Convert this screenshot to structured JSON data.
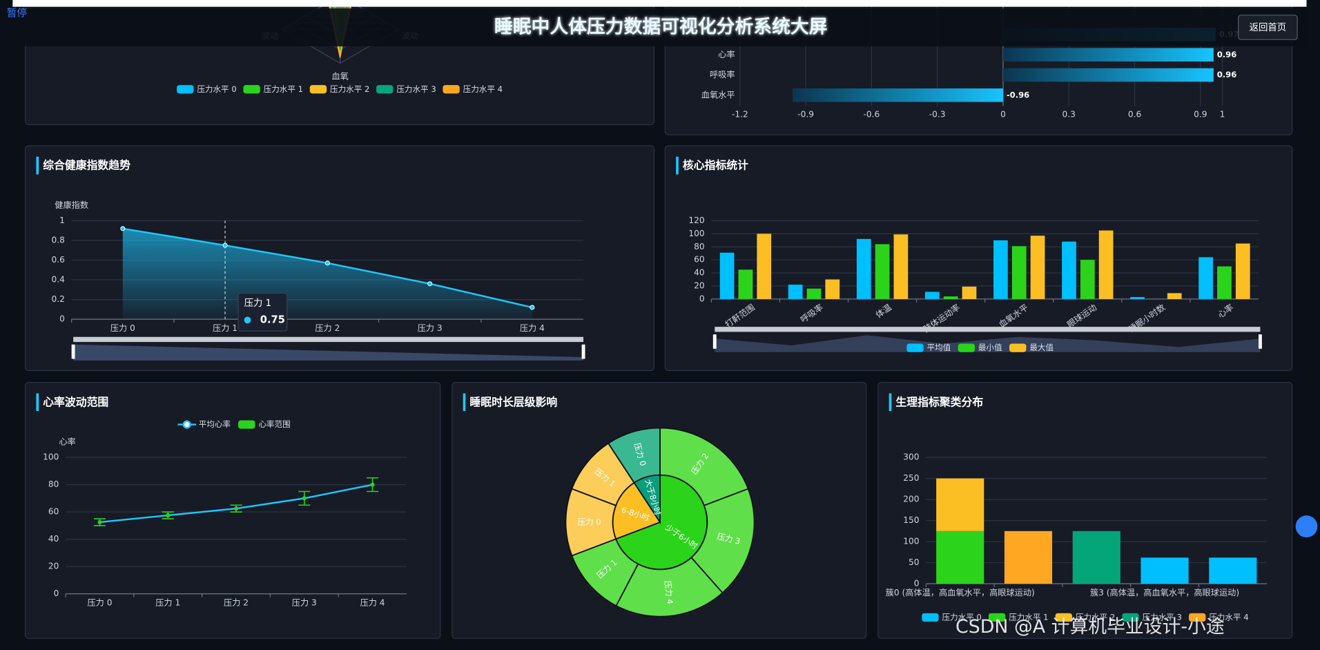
{
  "header": {
    "pause": "暂停",
    "title": "睡眠中人体压力数据可视化分析系统大屏",
    "back_button": "返回首页"
  },
  "watermark": "CSDN @A 计算机毕业设计-小途",
  "chart_data": [
    {
      "type": "radar",
      "indicators": [
        "波动",
        "血氧",
        "波动"
      ],
      "rlim": [
        0,
        1
      ],
      "series": [
        {
          "name": "压力水平 0",
          "color": "#00bfff",
          "values": [
            0.15,
            0.85,
            0.12
          ]
        },
        {
          "name": "压力水平 1",
          "color": "#2bd41a",
          "values": [
            0.1,
            0.9,
            0.1
          ]
        },
        {
          "name": "压力水平 2",
          "color": "#fbbf24",
          "values": [
            0.2,
            0.88,
            0.18
          ]
        },
        {
          "name": "压力水平 3",
          "color": "#05a57a",
          "values": [
            0.12,
            0.8,
            0.15
          ]
        },
        {
          "name": "压力水平 4",
          "color": "#ffa722",
          "values": [
            0.18,
            0.92,
            0.2
          ]
        }
      ]
    },
    {
      "type": "hbar",
      "categories": [
        null,
        "心率",
        "呼吸率",
        "血氧水平"
      ],
      "values": [
        0.97,
        0.96,
        0.96,
        -0.96
      ],
      "xlim": [
        -1.2,
        1
      ],
      "xticks": [
        -1.2,
        -0.9,
        -0.6,
        -0.3,
        0,
        0.3,
        0.6,
        0.9,
        1
      ],
      "color": "#17c4ff",
      "grid": true
    },
    {
      "type": "area",
      "title": "综合健康指数趋势",
      "y_axis_label": "健康指数",
      "categories": [
        "压力 0",
        "压力 1",
        "压力 2",
        "压力 3",
        "压力 4"
      ],
      "values": [
        0.92,
        0.75,
        0.57,
        0.36,
        0.12
      ],
      "ylim": [
        0,
        1
      ],
      "yticks": [
        0,
        0.2,
        0.4,
        0.6,
        0.8,
        1
      ],
      "color": "#1ec8ff",
      "grid": true
    },
    {
      "type": "bar",
      "title": "核心指标统计",
      "categories": [
        "打鼾范围",
        "呼吸率",
        "体温",
        "肢体运动率",
        "血氧水平",
        "眼球运动",
        "睡眠小时数",
        "心率"
      ],
      "series": [
        {
          "name": "平均值",
          "color": "#00bfff",
          "values": [
            71,
            22,
            92,
            11,
            90,
            88,
            3,
            64
          ]
        },
        {
          "name": "最小值",
          "color": "#2bd41a",
          "values": [
            45,
            16,
            84,
            4,
            81,
            60,
            0,
            50
          ]
        },
        {
          "name": "最大值",
          "color": "#fbbf24",
          "values": [
            100,
            30,
            99,
            19,
            97,
            105,
            9,
            85
          ]
        }
      ],
      "ylim": [
        0,
        120
      ],
      "yticks": [
        0,
        20,
        40,
        60,
        80,
        100,
        120
      ],
      "grid": true
    },
    {
      "type": "errorbar",
      "title": "心率波动范围",
      "y_axis_label": "心率",
      "categories": [
        "压力 0",
        "压力 1",
        "压力 2",
        "压力 3",
        "压力 4"
      ],
      "series": [
        {
          "name": "平均心率",
          "color": "#1ec8ff",
          "values": [
            52.5,
            57.5,
            62.5,
            70,
            80
          ]
        },
        {
          "name": "心率范围",
          "color": "#2bd41a",
          "values": [
            2.5,
            2.5,
            2.5,
            5,
            5
          ]
        }
      ],
      "ylim": [
        0,
        100
      ],
      "yticks": [
        0,
        20,
        40,
        60,
        80,
        100
      ],
      "grid": true
    },
    {
      "type": "sunburst",
      "title": "睡眠时长层级影响",
      "series": [
        {
          "name": "少于6小时",
          "color": "#2bd41a",
          "outer_color": "#5fe04a",
          "children": [
            {
              "name": "压力 2",
              "value": 25
            },
            {
              "name": "压力 3",
              "value": 25
            },
            {
              "name": "压力 4",
              "value": 25
            },
            {
              "name": "压力 1",
              "value": 15
            }
          ]
        },
        {
          "name": "6-8小时",
          "color": "#fbbf24",
          "outer_color": "#fdcd5a",
          "children": [
            {
              "name": "压力 0",
              "value": 15
            },
            {
              "name": "压力 1",
              "value": 13
            }
          ]
        },
        {
          "name": "大于8小时",
          "color": "#0a9e7e",
          "outer_color": "#3ab892",
          "children": [
            {
              "name": "压力 0",
              "value": 12
            }
          ]
        }
      ]
    },
    {
      "type": "stacked_bar",
      "title": "生理指标聚类分布",
      "categories": [
        "簇0 (高体温，高血氧水平，高眼球运动)",
        null,
        null,
        "簇3 (高体温，高血氧水平，高眼球运动)",
        null
      ],
      "series": [
        {
          "name": "压力水平 0",
          "color": "#00bfff",
          "values": [
            null,
            null,
            null,
            62,
            62
          ]
        },
        {
          "name": "压力水平 1",
          "color": "#2bd41a",
          "values": [
            125,
            null,
            null,
            null,
            null
          ]
        },
        {
          "name": "压力水平 2",
          "color": "#fbbf24",
          "values": [
            125,
            null,
            null,
            null,
            null
          ]
        },
        {
          "name": "压力水平 3",
          "color": "#05a57a",
          "values": [
            null,
            null,
            125,
            null,
            null
          ]
        },
        {
          "name": "压力水平 4",
          "color": "#ffa722",
          "values": [
            null,
            125,
            null,
            null,
            null
          ]
        }
      ],
      "ylim": [
        0,
        300
      ],
      "yticks": [
        0,
        50,
        100,
        150,
        200,
        250,
        300
      ],
      "grid": true
    }
  ]
}
